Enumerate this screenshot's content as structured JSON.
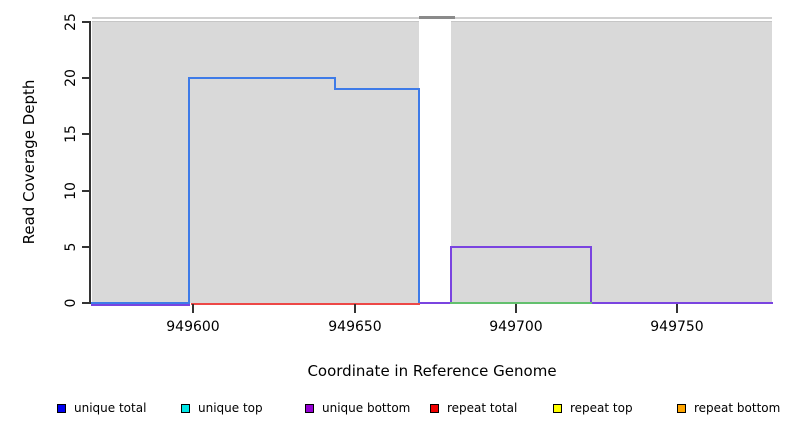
{
  "figure": {
    "background": "#ffffff",
    "panel_color": "#d9d9d9",
    "panel_top_edge": "#c6c6c6",
    "top_border_color": "#d0d0d0"
  },
  "axes": {
    "y": {
      "label": "Read Coverage Depth",
      "ticks": [
        "25",
        "20",
        "15",
        "10",
        "5",
        "0"
      ]
    },
    "x": {
      "label": "Coordinate in Reference Genome",
      "ticks": [
        "949600",
        "949650",
        "949700",
        "949750"
      ]
    }
  },
  "legend": {
    "items": [
      {
        "label": "unique total",
        "color": "#0000f0"
      },
      {
        "label": "unique top",
        "color": "#00e5e5"
      },
      {
        "label": "unique bottom",
        "color": "#9400d3"
      },
      {
        "label": "repeat total",
        "color": "#f00000"
      },
      {
        "label": "repeat top",
        "color": "#ffff00"
      },
      {
        "label": "repeat bottom",
        "color": "#ffa500"
      }
    ]
  },
  "chart_data": {
    "type": "line",
    "subtype": "step-coverage",
    "title": "",
    "xlabel": "Coordinate in Reference Genome",
    "ylabel": "Read Coverage Depth",
    "xlim": [
      949569,
      949779
    ],
    "ylim": [
      0,
      25
    ],
    "x_tick_values": [
      949600,
      949650,
      949700,
      949750
    ],
    "y_tick_values": [
      0,
      5,
      10,
      15,
      20,
      25
    ],
    "grid": false,
    "legend_position": "bottom",
    "background_regions": [
      {
        "x_start": 949569,
        "x_end": 949670
      },
      {
        "x_start": 949680,
        "x_end": 949779
      }
    ],
    "gap_region": {
      "x_start": 949670,
      "x_end": 949680
    },
    "clipped_region": {
      "x_start": 949670,
      "x_end": 949681,
      "color": "#8a8a8a",
      "note": "gray marker above axis max over the gap"
    },
    "series": [
      {
        "name": "unique bottom",
        "color": "#7a44e0",
        "width": 2,
        "paths": [
          {
            "dy": 1.5,
            "points": [
              [
                949569,
                0
              ],
              [
                949599,
                0
              ]
            ]
          },
          {
            "dy": 0,
            "points": [
              [
                949670,
                0
              ],
              [
                949680,
                0
              ],
              [
                949680,
                5
              ],
              [
                949723,
                5
              ],
              [
                949723,
                0
              ],
              [
                949779,
                0
              ]
            ]
          }
        ]
      },
      {
        "name": "green baseline (unlabeled)",
        "color": "#63c06e",
        "width": 2,
        "paths": [
          {
            "dy": -0.5,
            "points": [
              [
                949680,
                0
              ],
              [
                949723,
                0
              ]
            ]
          }
        ]
      },
      {
        "name": "repeat total",
        "color": "#ed4846",
        "width": 2,
        "paths": [
          {
            "dy": 0.5,
            "points": [
              [
                949600,
                0
              ],
              [
                949670,
                0
              ]
            ]
          }
        ]
      },
      {
        "name": "unique total",
        "color": "#3e7be8",
        "width": 2,
        "paths": [
          {
            "dy": -0.5,
            "points": [
              [
                949569,
                0
              ],
              [
                949599,
                0
              ],
              [
                949599,
                20
              ],
              [
                949644,
                20
              ],
              [
                949644,
                19
              ],
              [
                949670,
                19
              ],
              [
                949670,
                0
              ]
            ]
          }
        ]
      }
    ]
  }
}
